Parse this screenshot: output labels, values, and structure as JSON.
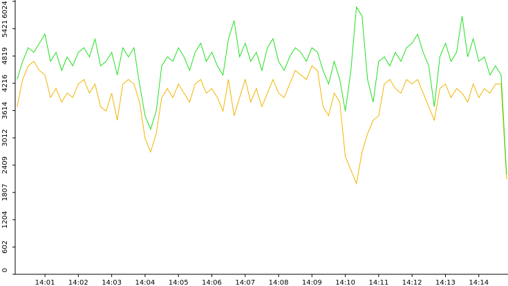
{
  "chart_data": {
    "type": "line",
    "categories": [
      null,
      null,
      null,
      null,
      null,
      "14:01",
      null,
      null,
      null,
      null,
      null,
      "14:02",
      null,
      null,
      null,
      null,
      null,
      "14:03",
      null,
      null,
      null,
      null,
      null,
      "14:04",
      null,
      null,
      null,
      null,
      null,
      "14:05",
      null,
      null,
      null,
      null,
      null,
      "14:06",
      null,
      null,
      null,
      null,
      null,
      "14:07",
      null,
      null,
      null,
      null,
      null,
      "14:08",
      null,
      null,
      null,
      null,
      null,
      "14:09",
      null,
      null,
      null,
      null,
      null,
      "14:10",
      null,
      null,
      null,
      null,
      null,
      "14:11",
      null,
      null,
      null,
      null,
      null,
      "14:12",
      null,
      null,
      null,
      null,
      null,
      "14:13",
      null,
      null,
      null,
      null,
      null,
      "14:14",
      null,
      null,
      null,
      null,
      null
    ],
    "series": [
      {
        "color": "#f0b400",
        "values": [
          3700,
          4300,
          4600,
          4700,
          4500,
          4400,
          3900,
          4100,
          3800,
          4000,
          3900,
          4200,
          4300,
          4000,
          4200,
          3700,
          3600,
          4000,
          3400,
          4200,
          4300,
          4200,
          3800,
          3000,
          2700,
          3100,
          3900,
          4100,
          3900,
          4200,
          4000,
          3800,
          4200,
          4300,
          4000,
          4100,
          3900,
          3600,
          4300,
          3500,
          3900,
          4300,
          3800,
          4100,
          3700,
          4000,
          4300,
          4000,
          3900,
          4200,
          4500,
          4400,
          4300,
          4600,
          4500,
          3700,
          3500,
          4000,
          3800,
          2600,
          2300,
          2000,
          2700,
          3100,
          3400,
          3500,
          4200,
          4300,
          4100,
          4000,
          4300,
          4200,
          4300,
          4000,
          3700,
          3400,
          4100,
          4200,
          3900,
          4100,
          4000,
          3800,
          4200,
          3900,
          4100,
          4000,
          4200,
          4200,
          2100
        ]
      },
      {
        "color": "#1ee01e",
        "values": [
          4300,
          4700,
          5000,
          4900,
          5100,
          5300,
          4700,
          4900,
          4500,
          4800,
          4600,
          4900,
          5000,
          4800,
          5200,
          4600,
          4700,
          4900,
          4400,
          5000,
          4800,
          5000,
          4200,
          3500,
          3200,
          3600,
          4600,
          4800,
          4700,
          5000,
          4800,
          4500,
          4900,
          5100,
          4700,
          4900,
          4600,
          4400,
          5200,
          5600,
          4800,
          5100,
          4700,
          4900,
          4500,
          5000,
          5200,
          4700,
          4500,
          4800,
          5000,
          4900,
          4700,
          5000,
          4900,
          4500,
          4200,
          4700,
          4300,
          3600,
          4500,
          5900,
          5700,
          4300,
          3800,
          4700,
          4800,
          4600,
          4900,
          4700,
          5000,
          5100,
          5300,
          4900,
          4600,
          3700,
          4800,
          5100,
          4700,
          4900,
          5700,
          4800,
          5200,
          4700,
          4800,
          4400,
          4600,
          4400,
          2200
        ]
      }
    ],
    "ylim": [
      0,
      6024
    ],
    "yticks": [
      0,
      602,
      1204,
      1807,
      2409,
      3012,
      3614,
      4216,
      4819,
      5421,
      6024
    ]
  }
}
